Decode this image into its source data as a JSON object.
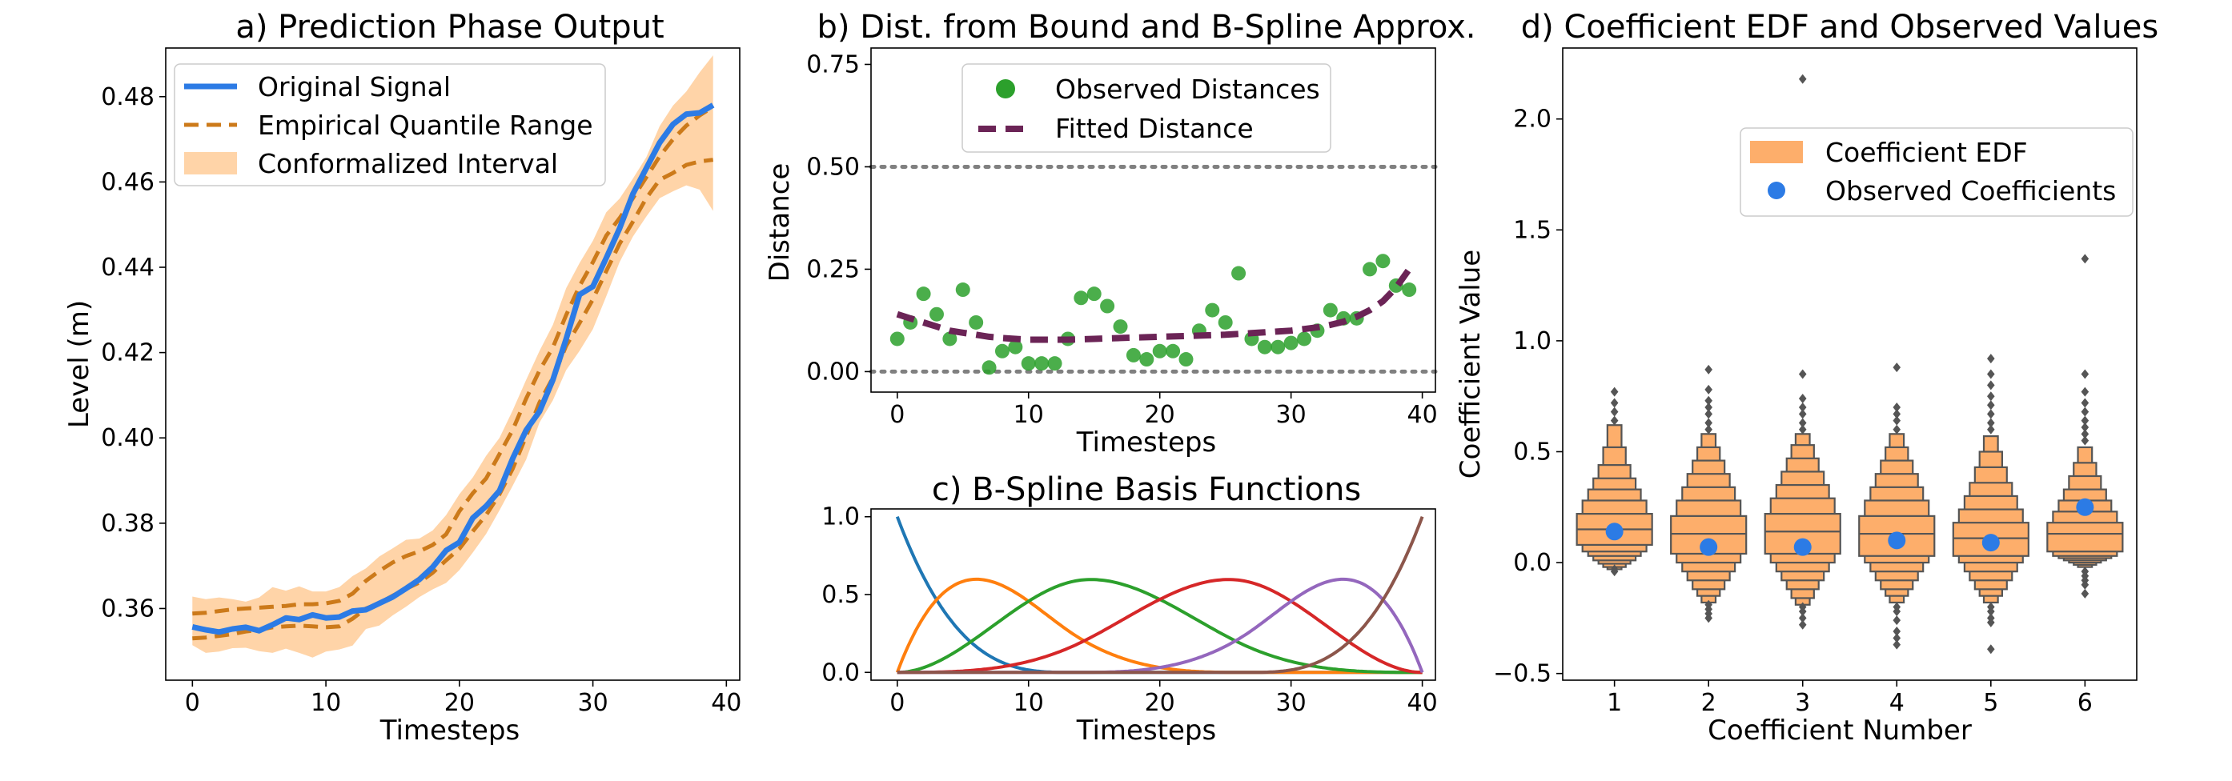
{
  "chart_data": [
    {
      "id": "a",
      "type": "line",
      "title": "a) Prediction Phase Output",
      "xlabel": "Timesteps",
      "ylabel": "Level (m)",
      "xlim": [
        -2,
        41
      ],
      "ylim": [
        0.3432,
        0.4914
      ],
      "xticks": [
        0,
        10,
        20,
        30,
        40
      ],
      "yticks": [
        0.36,
        0.38,
        0.4,
        0.42,
        0.44,
        0.46,
        0.48
      ],
      "ytick_labels": [
        "0.36",
        "0.38",
        "0.40",
        "0.42",
        "0.44",
        "0.46",
        "0.48"
      ],
      "legend_position": "top-left",
      "x": [
        0,
        1,
        2,
        3,
        4,
        5,
        6,
        7,
        8,
        9,
        10,
        11,
        12,
        13,
        14,
        15,
        16,
        17,
        18,
        19,
        20,
        21,
        22,
        23,
        24,
        25,
        26,
        27,
        28,
        29,
        30,
        31,
        32,
        33,
        34,
        35,
        36,
        37,
        38,
        39
      ],
      "series": [
        {
          "name": "Original Signal",
          "color": "#2c7be5",
          "values": [
            0.3557,
            0.355,
            0.3545,
            0.3552,
            0.3556,
            0.3548,
            0.3562,
            0.3578,
            0.3574,
            0.3585,
            0.3578,
            0.358,
            0.3594,
            0.3597,
            0.3612,
            0.3627,
            0.3647,
            0.3668,
            0.3697,
            0.3736,
            0.3755,
            0.3812,
            0.384,
            0.3876,
            0.3952,
            0.4018,
            0.4062,
            0.4136,
            0.4232,
            0.4336,
            0.4355,
            0.4422,
            0.4491,
            0.4572,
            0.4632,
            0.4692,
            0.4735,
            0.4759,
            0.4762,
            0.478
          ]
        },
        {
          "name": "Empirical Quantile Range",
          "color": "#cc7a1a",
          "upper": [
            0.3588,
            0.359,
            0.3594,
            0.3598,
            0.36,
            0.3602,
            0.3604,
            0.3606,
            0.361,
            0.361,
            0.3612,
            0.3618,
            0.3635,
            0.3665,
            0.3688,
            0.3708,
            0.3723,
            0.3734,
            0.3749,
            0.3774,
            0.3828,
            0.387,
            0.3905,
            0.3962,
            0.4019,
            0.4092,
            0.4158,
            0.4212,
            0.4288,
            0.4356,
            0.4412,
            0.4474,
            0.4515,
            0.4562,
            0.4611,
            0.466,
            0.47,
            0.4732,
            0.4756,
            0.4776
          ],
          "lower": [
            0.353,
            0.3532,
            0.3536,
            0.354,
            0.3546,
            0.355,
            0.3556,
            0.3558,
            0.356,
            0.3558,
            0.3556,
            0.3558,
            0.3576,
            0.36,
            0.3612,
            0.363,
            0.3646,
            0.3661,
            0.3684,
            0.3713,
            0.374,
            0.3781,
            0.3819,
            0.3868,
            0.3928,
            0.4004,
            0.4083,
            0.4141,
            0.4216,
            0.4269,
            0.4325,
            0.4391,
            0.4455,
            0.4507,
            0.4562,
            0.4605,
            0.4621,
            0.464,
            0.4648,
            0.4652
          ]
        },
        {
          "name": "Conformalized Interval",
          "color": "#ffcc99",
          "upper": [
            0.3628,
            0.3622,
            0.3626,
            0.3622,
            0.3616,
            0.3626,
            0.365,
            0.3642,
            0.3652,
            0.364,
            0.364,
            0.365,
            0.3676,
            0.3694,
            0.3722,
            0.3741,
            0.3761,
            0.3764,
            0.3783,
            0.3819,
            0.3868,
            0.3907,
            0.3958,
            0.4,
            0.4065,
            0.4136,
            0.4204,
            0.4265,
            0.4351,
            0.441,
            0.4462,
            0.4529,
            0.4561,
            0.4608,
            0.4658,
            0.4731,
            0.4779,
            0.4812,
            0.4857,
            0.4897
          ],
          "lower": [
            0.3514,
            0.3496,
            0.3499,
            0.3507,
            0.3508,
            0.35,
            0.3496,
            0.3506,
            0.3496,
            0.3485,
            0.3499,
            0.3504,
            0.3513,
            0.3552,
            0.356,
            0.3584,
            0.3604,
            0.3627,
            0.3645,
            0.366,
            0.369,
            0.3731,
            0.3775,
            0.383,
            0.3888,
            0.3949,
            0.4036,
            0.4088,
            0.4159,
            0.4204,
            0.4255,
            0.4332,
            0.4412,
            0.4472,
            0.4519,
            0.4562,
            0.4578,
            0.4592,
            0.4582,
            0.4532
          ]
        }
      ]
    },
    {
      "id": "b",
      "type": "scatter",
      "title": "b) Dist. from Bound and B-Spline Approx.",
      "xlabel": "Timesteps",
      "ylabel": "Distance",
      "xlim": [
        -2,
        41
      ],
      "ylim": [
        -0.05,
        0.79
      ],
      "xticks": [
        0,
        10,
        20,
        30,
        40
      ],
      "yticks": [
        0.0,
        0.25,
        0.5,
        0.75
      ],
      "ytick_labels": [
        "0.00",
        "0.25",
        "0.50",
        "0.75"
      ],
      "hlines": [
        0.0,
        0.5
      ],
      "legend_position": "top-center",
      "x": [
        0,
        1,
        2,
        3,
        4,
        5,
        6,
        7,
        8,
        9,
        10,
        11,
        12,
        13,
        14,
        15,
        16,
        17,
        18,
        19,
        20,
        21,
        22,
        23,
        24,
        25,
        26,
        27,
        28,
        29,
        30,
        31,
        32,
        33,
        34,
        35,
        36,
        37,
        38,
        39
      ],
      "series": [
        {
          "name": "Observed Distances",
          "color": "#2ca02c",
          "values": [
            0.08,
            0.12,
            0.19,
            0.14,
            0.08,
            0.2,
            0.12,
            0.01,
            0.05,
            0.06,
            0.02,
            0.02,
            0.02,
            0.08,
            0.18,
            0.19,
            0.16,
            0.11,
            0.04,
            0.03,
            0.05,
            0.05,
            0.03,
            0.1,
            0.15,
            0.12,
            0.24,
            0.08,
            0.06,
            0.06,
            0.07,
            0.08,
            0.1,
            0.15,
            0.13,
            0.13,
            0.25,
            0.27,
            0.21,
            0.2
          ]
        },
        {
          "name": "Fitted Distance",
          "color": "#6b2456",
          "values": [
            0.14,
            0.13,
            0.12,
            0.11,
            0.1,
            0.095,
            0.09,
            0.085,
            0.082,
            0.08,
            0.078,
            0.078,
            0.078,
            0.078,
            0.079,
            0.08,
            0.081,
            0.082,
            0.083,
            0.084,
            0.085,
            0.086,
            0.087,
            0.088,
            0.089,
            0.09,
            0.092,
            0.094,
            0.096,
            0.098,
            0.1,
            0.104,
            0.108,
            0.114,
            0.122,
            0.134,
            0.15,
            0.172,
            0.205,
            0.25
          ]
        }
      ]
    },
    {
      "id": "c",
      "type": "line",
      "title": "c) B-Spline Basis Functions",
      "xlabel": "Timesteps",
      "ylabel": "",
      "xlim": [
        -2,
        41
      ],
      "ylim": [
        -0.05,
        1.05
      ],
      "xticks": [
        0,
        10,
        20,
        30,
        40
      ],
      "yticks": [
        0.0,
        0.5,
        1.0
      ],
      "ytick_labels": [
        "0.0",
        "0.5",
        "1.0"
      ],
      "basis": {
        "degree": 3,
        "knots": [
          0,
          0,
          0,
          0,
          13,
          26,
          39,
          39,
          39,
          39
        ],
        "scale_x": 40,
        "domain": [
          0,
          39
        ]
      },
      "series": [
        {
          "color": "#1f77b4"
        },
        {
          "color": "#ff7f0e"
        },
        {
          "color": "#2ca02c"
        },
        {
          "color": "#d62728"
        },
        {
          "color": "#9467bd"
        },
        {
          "color": "#8c564b"
        }
      ]
    },
    {
      "id": "d",
      "type": "boxen",
      "title": "d) Coefficient EDF and Observed Values",
      "xlabel": "Coefficient Number",
      "ylabel": "Coefficient Value",
      "xlim": [
        0.45,
        6.55
      ],
      "ylim": [
        -0.53,
        2.32
      ],
      "yticks": [
        -0.5,
        0.0,
        0.5,
        1.0,
        1.5,
        2.0
      ],
      "ytick_labels": [
        "−0.5",
        "0.0",
        "0.5",
        "1.0",
        "1.5",
        "2.0"
      ],
      "categories": [
        "1",
        "2",
        "3",
        "4",
        "5",
        "6"
      ],
      "legend_position": "upper-right",
      "edf": {
        "name": "Coefficient EDF",
        "color": "#fdae6b",
        "edge": "#555555"
      },
      "observed": {
        "name": "Observed Coefficients",
        "color": "#2c7be5",
        "values": [
          0.14,
          0.07,
          0.07,
          0.1,
          0.09,
          0.25
        ]
      },
      "groups": [
        {
          "median": 0.15,
          "levels": [
            [
              0.08,
              0.22
            ],
            [
              0.05,
              0.28
            ],
            [
              0.03,
              0.33
            ],
            [
              0.01,
              0.38
            ],
            [
              -0.005,
              0.44
            ],
            [
              -0.02,
              0.52
            ],
            [
              -0.03,
              0.62
            ]
          ],
          "outliers": [
            -0.04,
            -0.03,
            0.64,
            0.68,
            0.72,
            0.77
          ]
        },
        {
          "median": 0.13,
          "levels": [
            [
              0.04,
              0.21
            ],
            [
              0.0,
              0.28
            ],
            [
              -0.04,
              0.34
            ],
            [
              -0.08,
              0.4
            ],
            [
              -0.12,
              0.46
            ],
            [
              -0.15,
              0.52
            ],
            [
              -0.18,
              0.58
            ]
          ],
          "outliers": [
            -0.19,
            -0.21,
            -0.23,
            -0.25,
            0.6,
            0.63,
            0.67,
            0.7,
            0.73,
            0.78,
            0.87
          ]
        },
        {
          "median": 0.14,
          "levels": [
            [
              0.04,
              0.22
            ],
            [
              0.0,
              0.29
            ],
            [
              -0.04,
              0.35
            ],
            [
              -0.08,
              0.41
            ],
            [
              -0.12,
              0.47
            ],
            [
              -0.16,
              0.53
            ],
            [
              -0.19,
              0.58
            ]
          ],
          "outliers": [
            -0.2,
            -0.22,
            -0.25,
            -0.28,
            0.6,
            0.63,
            0.67,
            0.7,
            0.74,
            0.85,
            2.18
          ]
        },
        {
          "median": 0.13,
          "levels": [
            [
              0.03,
              0.21
            ],
            [
              0.0,
              0.28
            ],
            [
              -0.04,
              0.34
            ],
            [
              -0.08,
              0.4
            ],
            [
              -0.12,
              0.46
            ],
            [
              -0.15,
              0.52
            ],
            [
              -0.18,
              0.58
            ]
          ],
          "outliers": [
            -0.2,
            -0.22,
            -0.26,
            -0.31,
            -0.34,
            -0.37,
            0.6,
            0.64,
            0.67,
            0.7,
            0.88
          ]
        },
        {
          "median": 0.11,
          "levels": [
            [
              0.03,
              0.18
            ],
            [
              0.0,
              0.24
            ],
            [
              -0.04,
              0.3
            ],
            [
              -0.08,
              0.36
            ],
            [
              -0.12,
              0.43
            ],
            [
              -0.15,
              0.5
            ],
            [
              -0.18,
              0.57
            ]
          ],
          "outliers": [
            -0.2,
            -0.22,
            -0.25,
            -0.27,
            -0.39,
            0.6,
            0.63,
            0.67,
            0.71,
            0.75,
            0.8,
            0.85,
            0.92
          ]
        },
        {
          "median": 0.13,
          "levels": [
            [
              0.05,
              0.18
            ],
            [
              0.03,
              0.23
            ],
            [
              0.02,
              0.28
            ],
            [
              0.01,
              0.33
            ],
            [
              0.0,
              0.39
            ],
            [
              -0.01,
              0.45
            ],
            [
              -0.02,
              0.52
            ]
          ],
          "outliers": [
            -0.04,
            -0.06,
            -0.08,
            -0.1,
            -0.14,
            0.55,
            0.58,
            0.61,
            0.64,
            0.68,
            0.72,
            0.77,
            0.85,
            1.37
          ]
        }
      ]
    }
  ]
}
